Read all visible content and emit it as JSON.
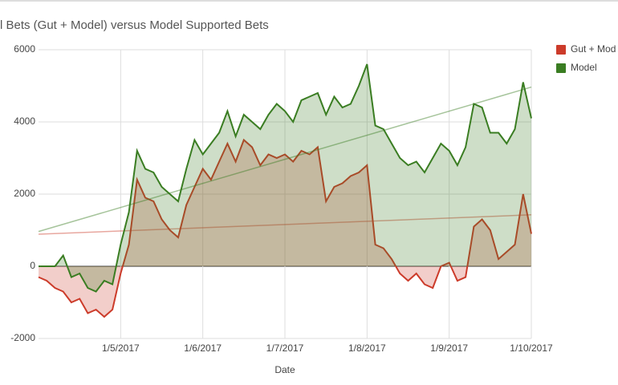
{
  "chart_data": {
    "type": "area",
    "title": "l Bets (Gut + Model) versus Model Supported Bets",
    "x_label": "Date",
    "categories": [
      null,
      null,
      null,
      null,
      null,
      null,
      null,
      null,
      null,
      null,
      "1/5/2017",
      null,
      null,
      null,
      null,
      null,
      null,
      null,
      null,
      null,
      "1/6/2017",
      null,
      null,
      null,
      null,
      null,
      null,
      null,
      null,
      null,
      "1/7/2017",
      null,
      null,
      null,
      null,
      null,
      null,
      null,
      null,
      null,
      "1/8/2017",
      null,
      null,
      null,
      null,
      null,
      null,
      null,
      null,
      null,
      "1/9/2017",
      null,
      null,
      null,
      null,
      null,
      null,
      null,
      null,
      null,
      "1/10/2017"
    ],
    "series": [
      {
        "name": "Gut + Mod",
        "color": "#cc3b2a",
        "values": [
          -300,
          -400,
          -600,
          -700,
          -1000,
          -900,
          -1300,
          -1200,
          -1400,
          -1200,
          -200,
          600,
          2400,
          1900,
          1800,
          1300,
          1000,
          800,
          1700,
          2200,
          2700,
          2400,
          2900,
          3400,
          2900,
          3500,
          3300,
          2800,
          3100,
          3000,
          3100,
          2900,
          3200,
          3100,
          3300,
          1800,
          2200,
          2300,
          2500,
          2600,
          2800,
          600,
          500,
          200,
          -200,
          -400,
          -200,
          -500,
          -600,
          0,
          100,
          -400,
          -300,
          1100,
          1300,
          1000,
          200,
          400,
          600,
          2000,
          900
        ]
      },
      {
        "name": "Model",
        "color": "#3a7d22",
        "values": [
          0,
          0,
          0,
          300,
          -300,
          -200,
          -600,
          -700,
          -400,
          -500,
          600,
          1500,
          3200,
          2700,
          2600,
          2200,
          2000,
          1800,
          2700,
          3500,
          3100,
          3400,
          3700,
          4300,
          3600,
          4200,
          4000,
          3800,
          4200,
          4500,
          4300,
          4000,
          4600,
          4700,
          4800,
          4200,
          4700,
          4400,
          4500,
          5000,
          5600,
          3900,
          3800,
          3400,
          3000,
          2800,
          2900,
          2600,
          3000,
          3400,
          3200,
          2800,
          3300,
          4500,
          4400,
          3700,
          3700,
          3400,
          3800,
          5100,
          4100
        ]
      }
    ],
    "ylim": [
      -2000,
      6000
    ],
    "yticks": [
      -2000,
      0,
      2000,
      4000,
      6000
    ],
    "grid": true,
    "trendline": true,
    "legend": "right"
  }
}
